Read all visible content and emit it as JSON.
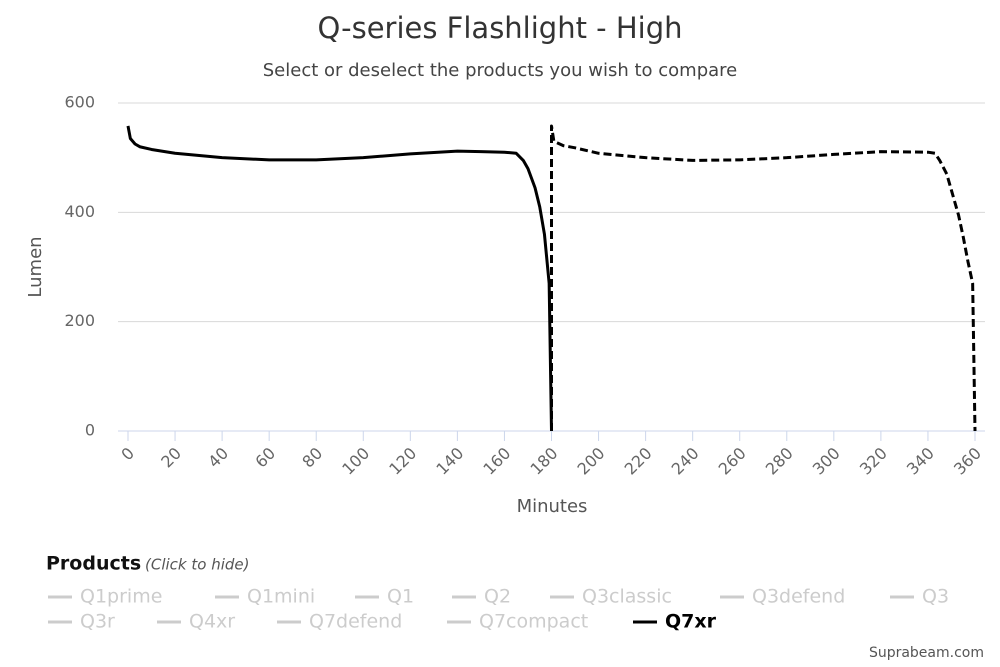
{
  "chart_data": {
    "type": "line",
    "title": "Q-series Flashlight - High",
    "subtitle": "Select or deselect the products you wish to compare",
    "x_label": "Minutes",
    "y_label": "Lumen",
    "xlim": [
      0,
      360
    ],
    "ylim": [
      0,
      600
    ],
    "xticks": [
      0,
      20,
      40,
      60,
      80,
      100,
      120,
      140,
      160,
      180,
      200,
      220,
      240,
      260,
      280,
      300,
      320,
      340,
      360
    ],
    "yticks": [
      0,
      200,
      400,
      600
    ],
    "grid": true,
    "dashed_from_x": 180,
    "series": [
      {
        "name": "Q7xr",
        "color": "#000000",
        "x": [
          0,
          1,
          3,
          5,
          10,
          20,
          40,
          60,
          80,
          100,
          120,
          140,
          150,
          160,
          165,
          168,
          170,
          173,
          175,
          177,
          179,
          180,
          180,
          181,
          185,
          190,
          200,
          220,
          240,
          260,
          280,
          300,
          320,
          340,
          343,
          345,
          348,
          350,
          353,
          355,
          357,
          359,
          360
        ],
        "values": [
          558,
          535,
          525,
          520,
          515,
          508,
          500,
          496,
          496,
          500,
          507,
          512,
          511,
          510,
          508,
          495,
          480,
          445,
          410,
          360,
          270,
          0,
          558,
          530,
          522,
          518,
          508,
          500,
          495,
          496,
          500,
          506,
          511,
          510,
          508,
          495,
          470,
          440,
          395,
          355,
          310,
          270,
          0
        ]
      }
    ],
    "legend": {
      "title": "Products",
      "note": "(Click to hide)",
      "hidden_series": [
        "Q1prime",
        "Q1mini",
        "Q1",
        "Q2",
        "Q3classic",
        "Q3defend",
        "Q3",
        "Q3r",
        "Q4xr",
        "Q7defend",
        "Q7compact"
      ],
      "hidden_color": "#cccccc"
    },
    "credits": "Suprabeam.com"
  }
}
